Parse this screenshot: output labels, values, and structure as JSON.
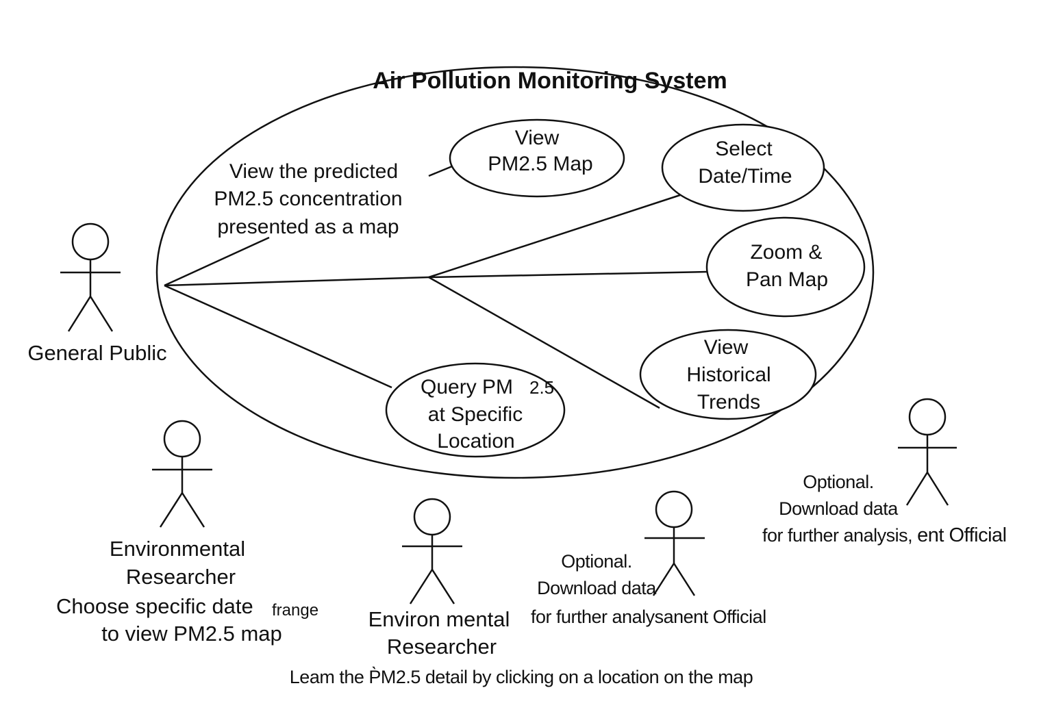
{
  "system": {
    "title": "Air Pollution Monitoring System"
  },
  "annotation": {
    "lines": [
      "View the predicted",
      "PM2.5 concentration",
      "presented as a map"
    ]
  },
  "use_cases": {
    "view_map": [
      "View",
      "PM2.5 Map"
    ],
    "select_date": [
      "Select",
      "Date/Time"
    ],
    "zoom_pan": [
      "Zoom &",
      "Pan Map"
    ],
    "historical": [
      "View",
      "Historical",
      "Trends"
    ],
    "query": [
      "Query PM",
      "2.5",
      "at Specific",
      "Location"
    ]
  },
  "actors": {
    "general_public": {
      "label": "General Public"
    },
    "env_researcher_1": {
      "lines": [
        "Environmental",
        "Researcher",
        "Choose specific date",
        "frange",
        "to view PM2.5 map"
      ]
    },
    "env_researcher_2": {
      "lines": [
        "Environ mental",
        "Researcher"
      ],
      "note_prefix": "Leam the ",
      "note_emph": "P̀M2.5",
      "note_suffix": " detail by clicking on a location on the map"
    },
    "official_1": {
      "lines": [
        "Optional.",
        "Download data",
        "for further analys",
        "anent Official"
      ]
    },
    "official_2": {
      "lines": [
        "Optional.",
        "Download data",
        "for further analysis",
        ", ",
        "ent Official"
      ]
    }
  }
}
